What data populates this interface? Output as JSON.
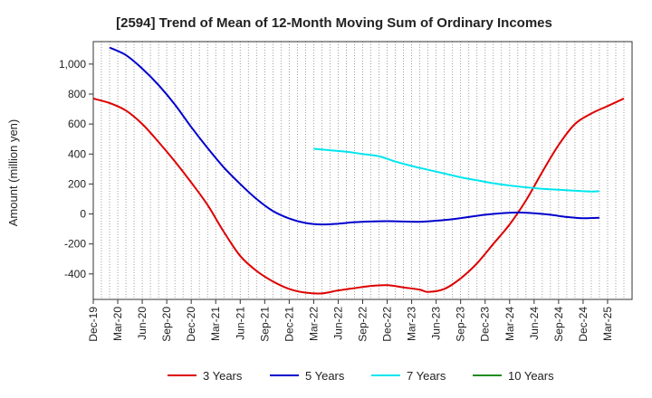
{
  "chart_data": {
    "type": "line",
    "title": "[2594]  Trend of Mean of 12-Month Moving Sum of Ordinary Incomes",
    "xlabel": "",
    "ylabel": "Amount (million yen)",
    "ylim": [
      -570,
      1150
    ],
    "yticks": [
      -400,
      -200,
      0,
      200,
      400,
      600,
      800,
      "1,000"
    ],
    "yticks_values": [
      -400,
      -200,
      0,
      200,
      400,
      600,
      800,
      1000
    ],
    "x_tick_labels": [
      "Dec-19",
      "Mar-20",
      "Jun-20",
      "Sep-20",
      "Dec-20",
      "Mar-21",
      "Jun-21",
      "Sep-21",
      "Dec-21",
      "Mar-22",
      "Jun-22",
      "Sep-22",
      "Dec-22",
      "Mar-23",
      "Jun-23",
      "Sep-23",
      "Dec-23",
      "Mar-24",
      "Jun-24",
      "Sep-24",
      "Dec-24",
      "Mar-25"
    ],
    "x_range_months": [
      0,
      63
    ],
    "grid": "vertical-dotted-monthly",
    "series": [
      {
        "name": "3 Years",
        "color": "#dd0000",
        "points": [
          [
            0,
            770
          ],
          [
            2,
            740
          ],
          [
            4,
            690
          ],
          [
            6,
            600
          ],
          [
            8,
            480
          ],
          [
            10,
            350
          ],
          [
            12,
            210
          ],
          [
            14,
            60
          ],
          [
            16,
            -120
          ],
          [
            18,
            -280
          ],
          [
            20,
            -380
          ],
          [
            22,
            -450
          ],
          [
            24,
            -500
          ],
          [
            26,
            -525
          ],
          [
            28,
            -530
          ],
          [
            30,
            -510
          ],
          [
            32,
            -495
          ],
          [
            34,
            -480
          ],
          [
            36,
            -475
          ],
          [
            38,
            -490
          ],
          [
            40,
            -505
          ],
          [
            41,
            -520
          ],
          [
            43,
            -500
          ],
          [
            45,
            -430
          ],
          [
            47,
            -330
          ],
          [
            49,
            -200
          ],
          [
            51,
            -70
          ],
          [
            53,
            90
          ],
          [
            55,
            280
          ],
          [
            57,
            460
          ],
          [
            59,
            600
          ],
          [
            61,
            670
          ],
          [
            63,
            720
          ],
          [
            65,
            770
          ]
        ]
      },
      {
        "name": "5 Years",
        "color": "#0000cc",
        "points": [
          [
            2,
            1110
          ],
          [
            4,
            1060
          ],
          [
            6,
            970
          ],
          [
            8,
            860
          ],
          [
            10,
            730
          ],
          [
            12,
            580
          ],
          [
            14,
            440
          ],
          [
            16,
            310
          ],
          [
            18,
            200
          ],
          [
            20,
            100
          ],
          [
            22,
            20
          ],
          [
            24,
            -30
          ],
          [
            26,
            -60
          ],
          [
            28,
            -70
          ],
          [
            30,
            -65
          ],
          [
            32,
            -55
          ],
          [
            34,
            -50
          ],
          [
            36,
            -48
          ],
          [
            38,
            -50
          ],
          [
            40,
            -52
          ],
          [
            42,
            -45
          ],
          [
            44,
            -35
          ],
          [
            46,
            -20
          ],
          [
            48,
            -5
          ],
          [
            50,
            5
          ],
          [
            52,
            10
          ],
          [
            54,
            5
          ],
          [
            56,
            -5
          ],
          [
            58,
            -20
          ],
          [
            60,
            -28
          ],
          [
            62,
            -25
          ]
        ]
      },
      {
        "name": "7 Years",
        "color": "#00e5ee",
        "points": [
          [
            27,
            435
          ],
          [
            29,
            425
          ],
          [
            31,
            415
          ],
          [
            33,
            400
          ],
          [
            35,
            385
          ],
          [
            37,
            350
          ],
          [
            39,
            320
          ],
          [
            41,
            295
          ],
          [
            43,
            270
          ],
          [
            45,
            245
          ],
          [
            47,
            225
          ],
          [
            49,
            205
          ],
          [
            51,
            190
          ],
          [
            53,
            178
          ],
          [
            55,
            168
          ],
          [
            57,
            162
          ],
          [
            59,
            155
          ],
          [
            61,
            150
          ],
          [
            62,
            152
          ]
        ]
      },
      {
        "name": "10 Years",
        "color": "#228b22",
        "points": []
      }
    ]
  },
  "legend": [
    {
      "label": "3 Years",
      "color": "#dd0000"
    },
    {
      "label": "5 Years",
      "color": "#0000cc"
    },
    {
      "label": "7 Years",
      "color": "#00e5ee"
    },
    {
      "label": "10 Years",
      "color": "#228b22"
    }
  ]
}
